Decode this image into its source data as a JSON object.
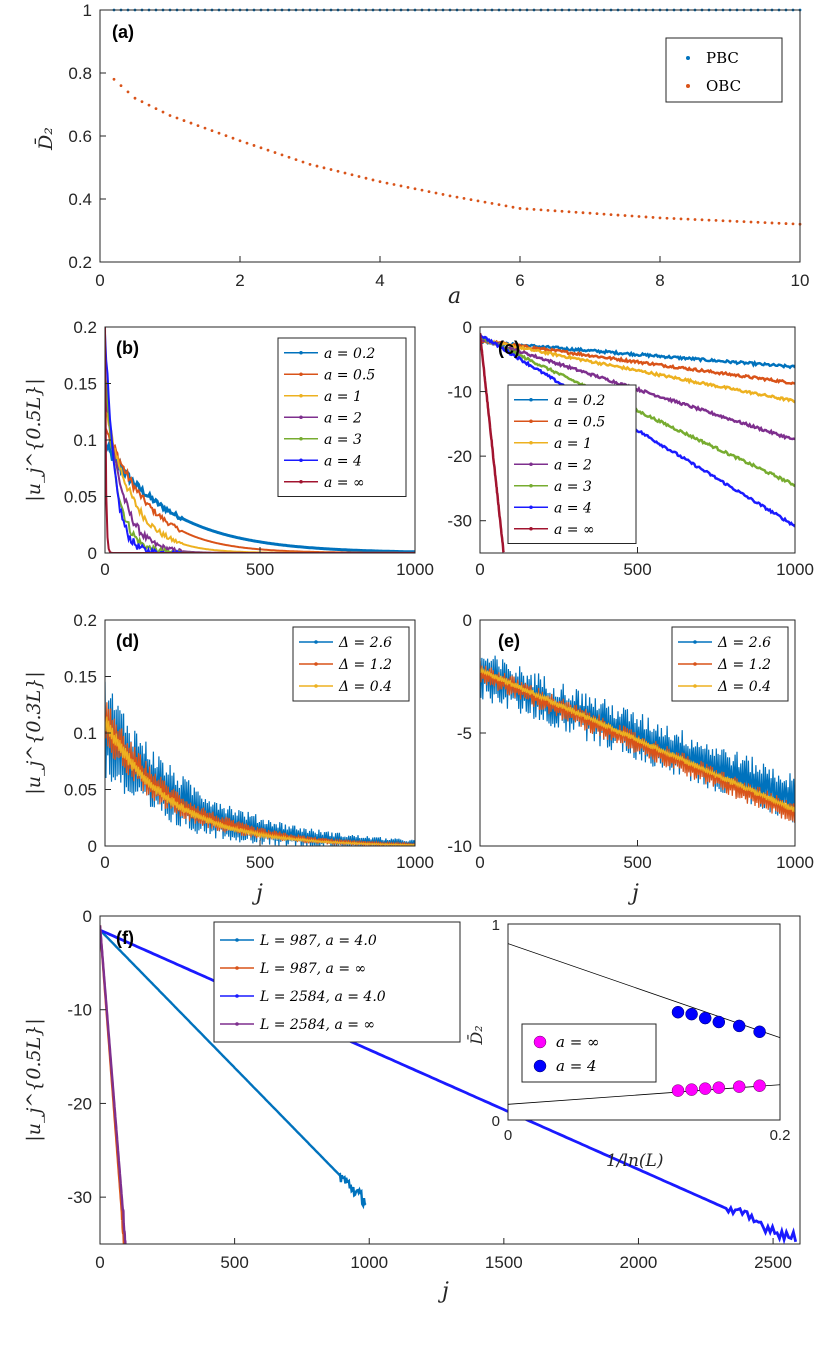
{
  "chart_data": [
    {
      "id": "a",
      "type": "scatter",
      "panel_label": "(a)",
      "xlabel": "a",
      "ylabel": "D̄₂",
      "xlim": [
        0,
        10
      ],
      "ylim": [
        0.2,
        1
      ],
      "xticks": [
        "0",
        "2",
        "4",
        "6",
        "8",
        "10"
      ],
      "yticks": [
        "0.2",
        "0.4",
        "0.6",
        "0.8",
        "1"
      ],
      "legend": [
        "PBC",
        "OBC"
      ],
      "series": [
        {
          "name": "PBC",
          "color": "#0072bd",
          "x_range": [
            0.2,
            10
          ],
          "y": 1.0
        },
        {
          "name": "OBC",
          "color": "#d95319",
          "x_range": [
            0.2,
            10
          ],
          "y_points": [
            [
              0.2,
              0.78
            ],
            [
              0.5,
              0.72
            ],
            [
              1,
              0.665
            ],
            [
              2,
              0.585
            ],
            [
              3,
              0.51
            ],
            [
              4,
              0.455
            ],
            [
              5,
              0.41
            ],
            [
              6,
              0.37
            ],
            [
              7,
              0.355
            ],
            [
              8,
              0.34
            ],
            [
              9,
              0.33
            ],
            [
              10,
              0.32
            ]
          ]
        }
      ]
    },
    {
      "id": "b",
      "type": "line",
      "panel_label": "(b)",
      "xlabel": "",
      "ylabel": "|u_j^{0.5L}|",
      "xlim": [
        0,
        1000
      ],
      "ylim": [
        0,
        0.2
      ],
      "xticks": [
        "0",
        "500",
        "1000"
      ],
      "yticks": [
        "0",
        "0.05",
        "0.1",
        "0.15",
        "0.2"
      ],
      "series": [
        {
          "name": "a = 0.2",
          "color": "#0072bd",
          "A": 0.095,
          "decay": 220
        },
        {
          "name": "a = 0.5",
          "color": "#d95319",
          "A": 0.115,
          "decay": 140
        },
        {
          "name": "a = 1",
          "color": "#edb120",
          "A": 0.13,
          "decay": 90
        },
        {
          "name": "a = 2",
          "color": "#7e2f8e",
          "A": 0.15,
          "decay": 55
        },
        {
          "name": "a = 3",
          "color": "#77ac30",
          "A": 0.16,
          "decay": 40
        },
        {
          "name": "a = 4",
          "color": "#1a1aff",
          "A": 0.2,
          "decay": 30
        },
        {
          "name": "a = ∞",
          "color": "#a2142f",
          "A": 0.2,
          "decay": 3
        }
      ]
    },
    {
      "id": "c",
      "type": "line",
      "panel_label": "(c)",
      "xlabel": "",
      "ylabel": "",
      "xlim": [
        0,
        1000
      ],
      "ylim": [
        -35,
        0
      ],
      "xticks": [
        "0",
        "500",
        "1000"
      ],
      "yticks": [
        "-30",
        "-20",
        "-10",
        "0"
      ],
      "series": [
        {
          "name": "a = 0.2",
          "color": "#0072bd",
          "y0": -2.3,
          "y1": -6.2
        },
        {
          "name": "a = 0.5",
          "color": "#d95319",
          "y0": -2.1,
          "y1": -8.7
        },
        {
          "name": "a = 1",
          "color": "#edb120",
          "y0": -2.0,
          "y1": -11.5
        },
        {
          "name": "a = 2",
          "color": "#7e2f8e",
          "y0": -1.8,
          "y1": -17.5
        },
        {
          "name": "a = 3",
          "color": "#77ac30",
          "y0": -1.5,
          "y1": -24.5
        },
        {
          "name": "a = 4",
          "color": "#1a1aff",
          "y0": -1.2,
          "y1": -30.8
        },
        {
          "name": "a = ∞",
          "color": "#a2142f",
          "y0": -1.0,
          "y1": -35,
          "x1": 75
        }
      ]
    },
    {
      "id": "d",
      "type": "line",
      "panel_label": "(d)",
      "xlabel": "j",
      "ylabel": "|u_j^{0.3L}|",
      "xlim": [
        0,
        1000
      ],
      "ylim": [
        0,
        0.2
      ],
      "xticks": [
        "0",
        "500",
        "1000"
      ],
      "yticks": [
        "0",
        "0.05",
        "0.1",
        "0.15",
        "0.2"
      ],
      "series": [
        {
          "name": "Δ = 2.6",
          "color": "#0072bd",
          "A": 0.105,
          "decay": 250,
          "noise": 0.045
        },
        {
          "name": "Δ = 1.2",
          "color": "#d95319",
          "A": 0.11,
          "decay": 220,
          "noise": 0.022
        },
        {
          "name": "Δ = 0.4",
          "color": "#edb120",
          "A": 0.11,
          "decay": 210,
          "noise": 0.008
        }
      ]
    },
    {
      "id": "e",
      "type": "line",
      "panel_label": "(e)",
      "xlabel": "j",
      "ylabel": "",
      "xlim": [
        0,
        1000
      ],
      "ylim": [
        -10,
        0
      ],
      "xticks": [
        "0",
        "500",
        "1000"
      ],
      "yticks": [
        "-10",
        "-5",
        "0"
      ],
      "series": [
        {
          "name": "Δ = 2.6",
          "color": "#0072bd",
          "y0": -2.4,
          "y1": -7.9,
          "noise": 1.1
        },
        {
          "name": "Δ = 1.2",
          "color": "#d95319",
          "y0": -2.3,
          "y1": -8.6,
          "noise": 0.5
        },
        {
          "name": "Δ = 0.4",
          "color": "#edb120",
          "y0": -2.2,
          "y1": -8.4,
          "noise": 0.15
        }
      ]
    },
    {
      "id": "f",
      "type": "line",
      "panel_label": "(f)",
      "xlabel": "j",
      "ylabel": "|u_j^{0.5L}|",
      "xlim": [
        0,
        2600
      ],
      "ylim": [
        -35,
        0
      ],
      "xticks": [
        "0",
        "500",
        "1000",
        "1500",
        "2000",
        "2500"
      ],
      "yticks": [
        "-30",
        "-20",
        "-10",
        "0"
      ],
      "series": [
        {
          "name": "L = 987, a = 4.0",
          "color": "#0072bd",
          "y0": -1.5,
          "y1": -30.5,
          "x1": 987
        },
        {
          "name": "L = 987, a = ∞",
          "color": "#d95319",
          "y0": -1.0,
          "y1": -35,
          "x1": 90
        },
        {
          "name": "L = 2584, a = 4.0",
          "color": "#1a1aff",
          "y0": -1.5,
          "y1": -34.5,
          "x1": 2584
        },
        {
          "name": "L = 2584, a = ∞",
          "color": "#7e2f8e",
          "y0": -1.0,
          "y1": -35,
          "x1": 95
        }
      ],
      "inset": {
        "type": "scatter",
        "xlabel": "1/ln(L)",
        "ylabel": "D̄₂",
        "xlim": [
          0,
          0.2
        ],
        "ylim": [
          0,
          1
        ],
        "xticks": [
          "0",
          "0.2"
        ],
        "yticks": [
          "0",
          "1"
        ],
        "series": [
          {
            "name": "a = ∞",
            "color": "#ff00ff",
            "x": [
              0.125,
              0.135,
              0.145,
              0.155,
              0.17,
              0.185
            ],
            "y": [
              0.15,
              0.155,
              0.16,
              0.165,
              0.17,
              0.175
            ]
          },
          {
            "name": "a = 4",
            "color": "#0000ff",
            "x": [
              0.125,
              0.135,
              0.145,
              0.155,
              0.17,
              0.185
            ],
            "y": [
              0.55,
              0.54,
              0.52,
              0.5,
              0.48,
              0.45
            ]
          }
        ],
        "fit_lines": [
          {
            "x": [
              0,
              0.2
            ],
            "y": [
              0.9,
              0.42
            ]
          },
          {
            "x": [
              0,
              0.2
            ],
            "y": [
              0.08,
              0.18
            ]
          }
        ]
      }
    }
  ]
}
